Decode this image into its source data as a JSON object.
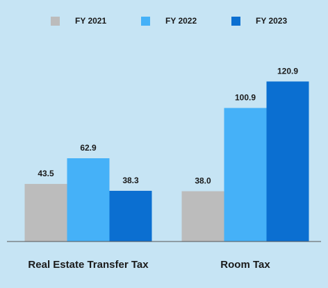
{
  "chart_data": {
    "type": "bar",
    "categories": [
      "Real Estate Transfer Tax",
      "Room Tax"
    ],
    "series": [
      {
        "name": "FY 2021",
        "color": "#bcbcbc",
        "values": [
          43.5,
          38.0
        ],
        "value_labels": [
          "43.5",
          "38.0"
        ]
      },
      {
        "name": "FY 2022",
        "color": "#45b1f8",
        "values": [
          62.9,
          100.9
        ],
        "value_labels": [
          "62.9",
          "100.9"
        ]
      },
      {
        "name": "FY 2023",
        "color": "#0b6fd1",
        "values": [
          38.3,
          120.9
        ],
        "value_labels": [
          "38.3",
          "120.9"
        ]
      }
    ],
    "ylim": [
      0,
      140
    ],
    "legend": "top"
  }
}
